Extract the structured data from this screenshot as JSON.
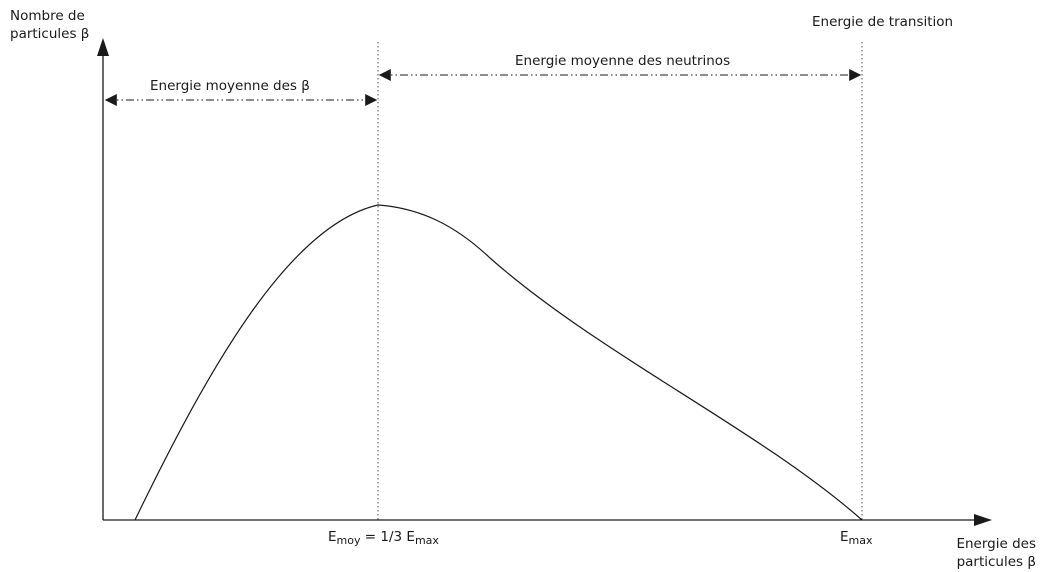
{
  "y_axis_label": "Nombre de\nparticules β",
  "x_axis_label": "Energie des\nparticules β",
  "transition_label": "Energie de transition",
  "beta_mean_label": "Energie moyenne des β",
  "neutrino_mean_label": "Energie moyenne des neutrinos",
  "e_moy_label": {
    "symbol": "E",
    "subscript": "moy",
    "equals": " = 1/3 E",
    "subscript2": "max"
  },
  "e_max_label": {
    "symbol": "E",
    "subscript": "max"
  },
  "colors": {
    "line": "#1a1a1a",
    "guide": "#555555"
  }
}
